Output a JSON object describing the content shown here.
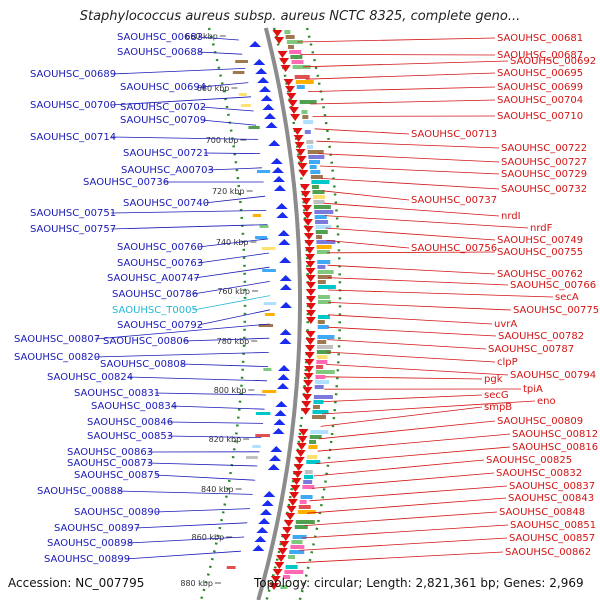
{
  "title": "Staphylococcus aureus subsp. aureus NCTC 8325, complete geno...",
  "footer": {
    "accession": "Accession: NC_007795",
    "topology": "Topology: circular; Length: 2,821,361 bp; Genes: 2,969"
  },
  "colors": {
    "left_label": "#1a1ab8",
    "right_label": "#d41414",
    "highlight_label": "#27b7d8"
  },
  "kbp_ticks": [
    "660 kbp",
    "680 kbp",
    "700 kbp",
    "720 kbp",
    "740 kbp",
    "760 kbp",
    "780 kbp",
    "800 kbp",
    "820 kbp",
    "840 kbp",
    "860 kbp",
    "880 kbp"
  ],
  "left_labels": [
    {
      "text": "SAOUHSC_00683",
      "color": "blue"
    },
    {
      "text": "SAOUHSC_00688",
      "color": "blue"
    },
    {
      "text": "SAOUHSC_00689",
      "color": "blue"
    },
    {
      "text": "SAOUHSC_00694",
      "color": "blue"
    },
    {
      "text": "SAOUHSC_00700",
      "color": "blue"
    },
    {
      "text": "SAOUHSC_00702",
      "color": "blue"
    },
    {
      "text": "SAOUHSC_00709",
      "color": "blue"
    },
    {
      "text": "SAOUHSC_00714",
      "color": "blue"
    },
    {
      "text": "SAOUHSC_00721",
      "color": "blue"
    },
    {
      "text": "SAOUHSC_A00703",
      "color": "blue"
    },
    {
      "text": "SAOUHSC_00736",
      "color": "blue"
    },
    {
      "text": "SAOUHSC_00740",
      "color": "blue"
    },
    {
      "text": "SAOUHSC_00751",
      "color": "blue"
    },
    {
      "text": "SAOUHSC_00757",
      "color": "blue"
    },
    {
      "text": "SAOUHSC_00760",
      "color": "blue"
    },
    {
      "text": "SAOUHSC_00763",
      "color": "blue"
    },
    {
      "text": "SAOUHSC_A00747",
      "color": "blue"
    },
    {
      "text": "SAOUHSC_00786",
      "color": "blue"
    },
    {
      "text": "SAOUHSC_T0005",
      "color": "cyan"
    },
    {
      "text": "SAOUHSC_00792",
      "color": "blue"
    },
    {
      "text": "SAOUHSC_00807",
      "color": "blue"
    },
    {
      "text": "SAOUHSC_00806",
      "color": "blue"
    },
    {
      "text": "SAOUHSC_00820",
      "color": "blue"
    },
    {
      "text": "SAOUHSC_00808",
      "color": "blue"
    },
    {
      "text": "SAOUHSC_00824",
      "color": "blue"
    },
    {
      "text": "SAOUHSC_00831",
      "color": "blue"
    },
    {
      "text": "SAOUHSC_00834",
      "color": "blue"
    },
    {
      "text": "SAOUHSC_00846",
      "color": "blue"
    },
    {
      "text": "SAOUHSC_00853",
      "color": "blue"
    },
    {
      "text": "SAOUHSC_00863",
      "color": "blue"
    },
    {
      "text": "SAOUHSC_00873",
      "color": "blue"
    },
    {
      "text": "SAOUHSC_00875",
      "color": "blue"
    },
    {
      "text": "SAOUHSC_00888",
      "color": "blue"
    },
    {
      "text": "SAOUHSC_00890",
      "color": "blue"
    },
    {
      "text": "SAOUHSC_00897",
      "color": "blue"
    },
    {
      "text": "SAOUHSC_00898",
      "color": "blue"
    },
    {
      "text": "SAOUHSC_00899",
      "color": "blue"
    }
  ],
  "right_labels": [
    {
      "text": "SAOUHSC_00681"
    },
    {
      "text": "SAOUHSC_00687"
    },
    {
      "text": "SAOUHSC_00692"
    },
    {
      "text": "SAOUHSC_00695"
    },
    {
      "text": "SAOUHSC_00699"
    },
    {
      "text": "SAOUHSC_00704"
    },
    {
      "text": "SAOUHSC_00710"
    },
    {
      "text": "SAOUHSC_00713"
    },
    {
      "text": "SAOUHSC_00722"
    },
    {
      "text": "SAOUHSC_00727"
    },
    {
      "text": "SAOUHSC_00729"
    },
    {
      "text": "SAOUHSC_00732"
    },
    {
      "text": "SAOUHSC_00737"
    },
    {
      "text": "nrdI"
    },
    {
      "text": "nrdF"
    },
    {
      "text": "SAOUHSC_00749"
    },
    {
      "text": "SAOUHSC_00756"
    },
    {
      "text": "SAOUHSC_00755"
    },
    {
      "text": "SAOUHSC_00762"
    },
    {
      "text": "SAOUHSC_00766"
    },
    {
      "text": "secA"
    },
    {
      "text": "SAOUHSC_00775"
    },
    {
      "text": "uvrA"
    },
    {
      "text": "SAOUHSC_00782"
    },
    {
      "text": "SAOUHSC_00787"
    },
    {
      "text": "clpP"
    },
    {
      "text": "SAOUHSC_00794"
    },
    {
      "text": "pgk"
    },
    {
      "text": "tpiA"
    },
    {
      "text": "secG"
    },
    {
      "text": "eno"
    },
    {
      "text": "smpB"
    },
    {
      "text": "SAOUHSC_00809"
    },
    {
      "text": "SAOUHSC_00812"
    },
    {
      "text": "SAOUHSC_00816"
    },
    {
      "text": "SAOUHSC_00825"
    },
    {
      "text": "SAOUHSC_00832"
    },
    {
      "text": "SAOUHSC_00837"
    },
    {
      "text": "SAOUHSC_00843"
    },
    {
      "text": "SAOUHSC_00848"
    },
    {
      "text": "SAOUHSC_00851"
    },
    {
      "text": "SAOUHSC_00857"
    },
    {
      "text": "SAOUHSC_00862"
    }
  ]
}
